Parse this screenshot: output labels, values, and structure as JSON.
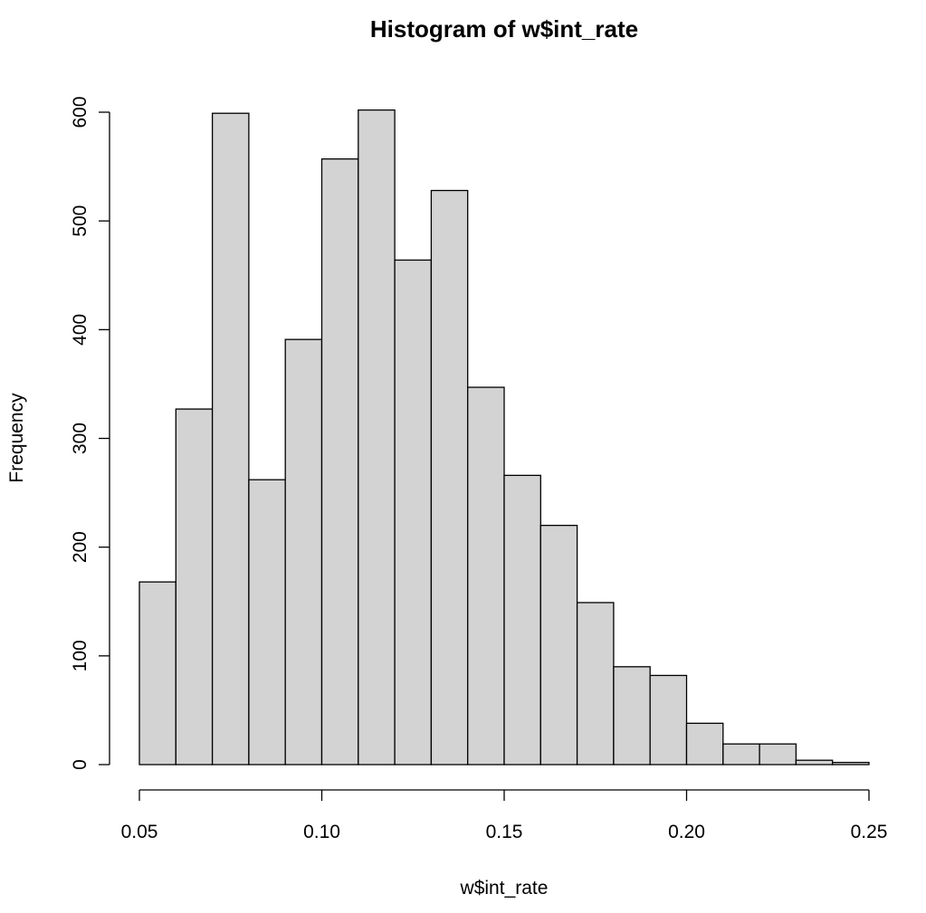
{
  "chart_data": {
    "type": "bar",
    "title": "Histogram of w$int_rate",
    "xlabel": "w$int_rate",
    "ylabel": "Frequency",
    "bin_edges": [
      0.05,
      0.06,
      0.07,
      0.08,
      0.09,
      0.1,
      0.11,
      0.12,
      0.13,
      0.14,
      0.15,
      0.16,
      0.17,
      0.18,
      0.19,
      0.2,
      0.21,
      0.22,
      0.23,
      0.24,
      0.25
    ],
    "values": [
      168,
      327,
      599,
      262,
      391,
      557,
      602,
      464,
      528,
      347,
      266,
      220,
      149,
      90,
      82,
      38,
      19,
      19,
      4,
      2
    ],
    "xlim": [
      0.05,
      0.25
    ],
    "ylim": [
      0,
      600
    ],
    "x_ticks": [
      "0.05",
      "0.10",
      "0.15",
      "0.20",
      "0.25"
    ],
    "y_ticks": [
      "0",
      "100",
      "200",
      "300",
      "400",
      "500",
      "600"
    ],
    "colors": {
      "bar_fill": "#d3d3d3",
      "bar_stroke": "#000000"
    },
    "grid": false
  }
}
